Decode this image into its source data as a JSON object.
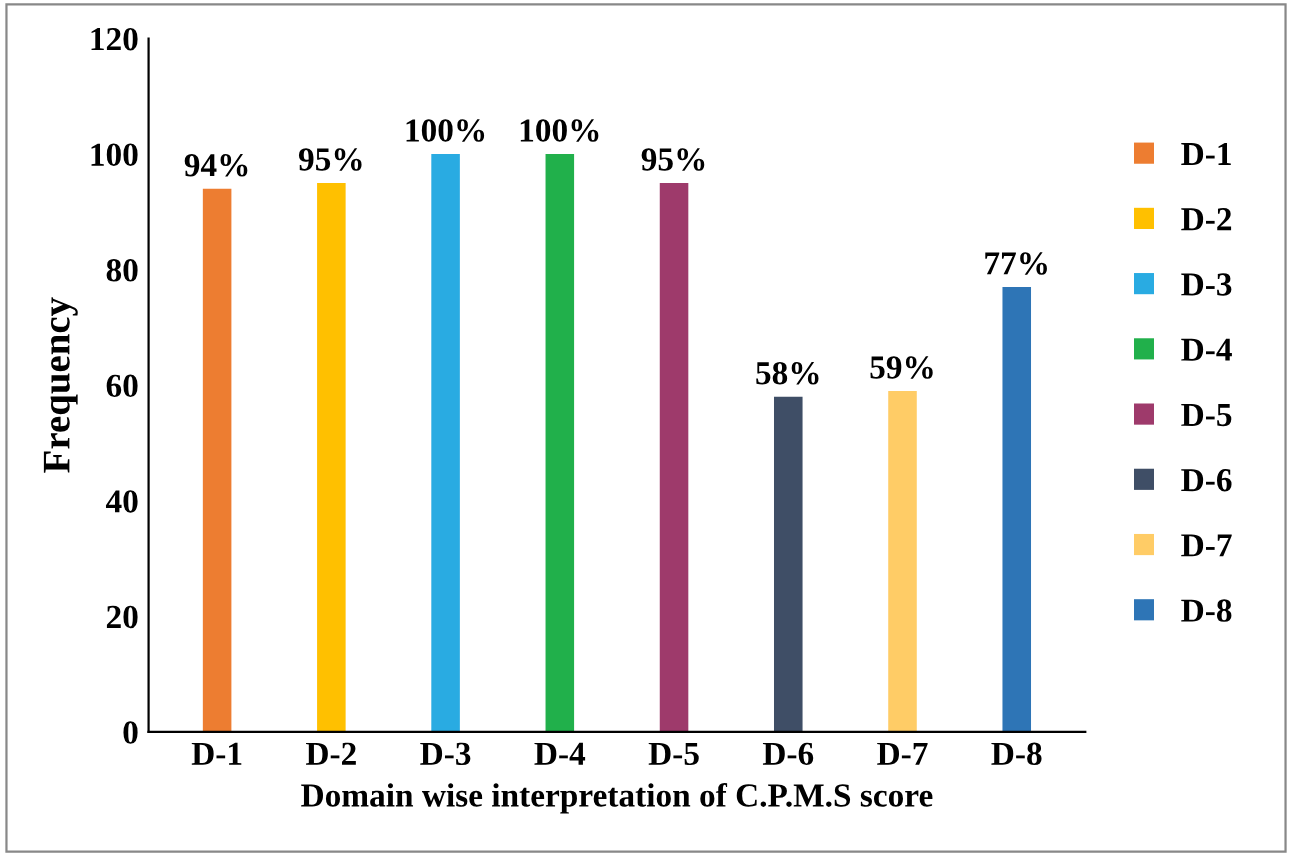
{
  "chart_data": {
    "type": "bar",
    "xlabel": "Domain wise interpretation of C.P.M.S score",
    "ylabel": "Frequency",
    "categories": [
      "D-1",
      "D-2",
      "D-3",
      "D-4",
      "D-5",
      "D-6",
      "D-7",
      "D-8"
    ],
    "series": [
      {
        "name": "D-1",
        "color": "#ed7d31",
        "values": [
          94,
          null,
          null,
          null,
          null,
          null,
          null,
          null
        ],
        "value_labels": [
          "94%",
          null,
          null,
          null,
          null,
          null,
          null,
          null
        ]
      },
      {
        "name": "D-2",
        "color": "#ffc000",
        "values": [
          null,
          95,
          null,
          null,
          null,
          null,
          null,
          null
        ],
        "value_labels": [
          null,
          "95%",
          null,
          null,
          null,
          null,
          null,
          null
        ]
      },
      {
        "name": "D-3",
        "color": "#29abe2",
        "values": [
          null,
          null,
          100,
          null,
          null,
          null,
          null,
          null
        ],
        "value_labels": [
          null,
          null,
          "100%",
          null,
          null,
          null,
          null,
          null
        ]
      },
      {
        "name": "D-4",
        "color": "#21b04b",
        "values": [
          null,
          null,
          null,
          100,
          null,
          null,
          null,
          null
        ],
        "value_labels": [
          null,
          null,
          null,
          "100%",
          null,
          null,
          null,
          null
        ]
      },
      {
        "name": "D-5",
        "color": "#9e3a6b",
        "values": [
          null,
          null,
          null,
          null,
          95,
          null,
          null,
          null
        ],
        "value_labels": [
          null,
          null,
          null,
          null,
          "95%",
          null,
          null,
          null
        ]
      },
      {
        "name": "D-6",
        "color": "#3f4e66",
        "values": [
          null,
          null,
          null,
          null,
          null,
          58,
          null,
          null
        ],
        "value_labels": [
          null,
          null,
          null,
          null,
          null,
          "58%",
          null,
          null
        ]
      },
      {
        "name": "D-7",
        "color": "#ffcc66",
        "values": [
          null,
          null,
          null,
          null,
          null,
          null,
          59,
          null
        ],
        "value_labels": [
          null,
          null,
          null,
          null,
          null,
          null,
          "59%",
          null
        ]
      },
      {
        "name": "D-8",
        "color": "#2e75b6",
        "values": [
          null,
          null,
          null,
          null,
          null,
          null,
          null,
          77
        ],
        "value_labels": [
          null,
          null,
          null,
          null,
          null,
          null,
          null,
          "77%"
        ]
      }
    ],
    "ylim": [
      0,
      120
    ],
    "yticks": [
      0,
      20,
      40,
      60,
      80,
      100,
      120
    ],
    "grid": false,
    "legend": "right"
  }
}
